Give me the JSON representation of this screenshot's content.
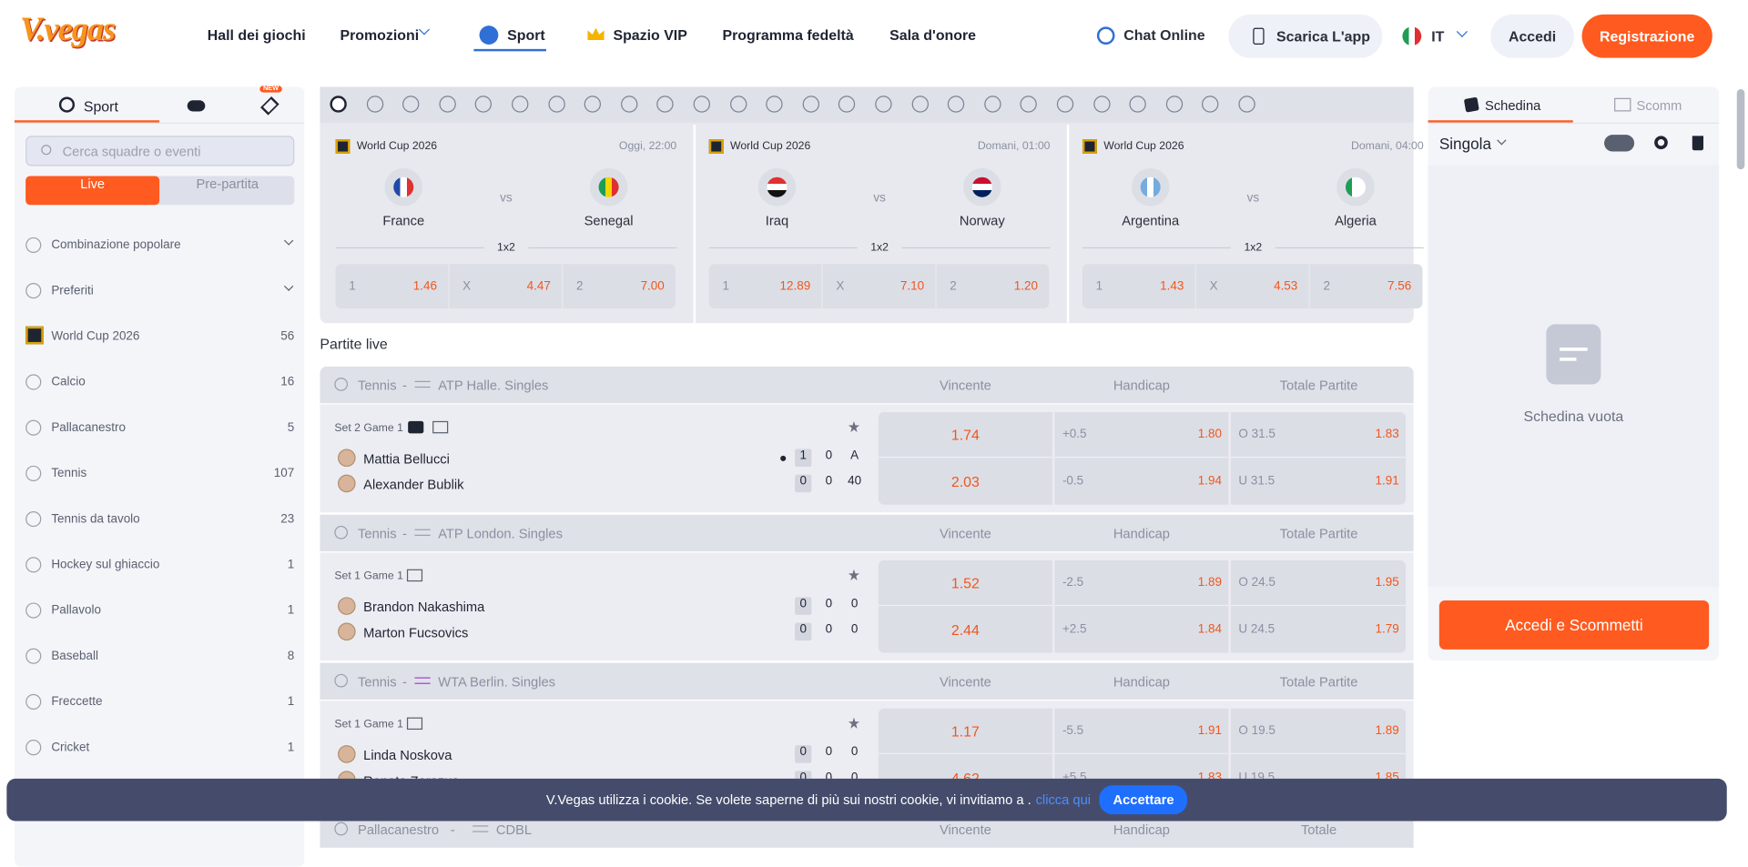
{
  "header": {
    "logo": "V.vegas",
    "nav": [
      "Hall dei giochi",
      "Promozioni",
      "Sport",
      "Spazio VIP",
      "Programma fedeltà",
      "Sala d'onore"
    ],
    "chat": "Chat Online",
    "app": "Scarica L'app",
    "lang": "IT",
    "login": "Accedi",
    "register": "Registrazione"
  },
  "sidebar": {
    "tab": "Sport",
    "badge": "NEW",
    "search": "Cerca squadre o eventi",
    "toggle": [
      "Live",
      "Pre-partita"
    ],
    "items": [
      {
        "label": "Combinazione popolare"
      },
      {
        "label": "Preferiti"
      },
      {
        "label": "World Cup 2026",
        "count": "56"
      },
      {
        "label": "Calcio",
        "count": "16"
      },
      {
        "label": "Pallacanestro",
        "count": "5"
      },
      {
        "label": "Tennis",
        "count": "107"
      },
      {
        "label": "Tennis da tavolo",
        "count": "23"
      },
      {
        "label": "Hockey sul ghiaccio",
        "count": "1"
      },
      {
        "label": "Pallavolo",
        "count": "1"
      },
      {
        "label": "Baseball",
        "count": "8"
      },
      {
        "label": "Freccette",
        "count": "1"
      },
      {
        "label": "Cricket",
        "count": "1"
      }
    ]
  },
  "featured": {
    "vs": "vs",
    "market": "1x2",
    "cards": [
      {
        "league": "World Cup 2026",
        "time": "Oggi, 22:00",
        "home": "France",
        "away": "Senegal",
        "odds": [
          {
            "label": "1",
            "value": "1.46"
          },
          {
            "label": "X",
            "value": "4.47"
          },
          {
            "label": "2",
            "value": "7.00"
          }
        ]
      },
      {
        "league": "World Cup 2026",
        "time": "Domani, 01:00",
        "home": "Iraq",
        "away": "Norway",
        "odds": [
          {
            "label": "1",
            "value": "12.89"
          },
          {
            "label": "X",
            "value": "7.10"
          },
          {
            "label": "2",
            "value": "1.20"
          }
        ]
      },
      {
        "league": "World Cup 2026",
        "time": "Domani, 04:00",
        "home": "Argentina",
        "away": "Algeria",
        "odds": [
          {
            "label": "1",
            "value": "1.43"
          },
          {
            "label": "X",
            "value": "4.53"
          },
          {
            "label": "2",
            "value": "7.56"
          }
        ]
      }
    ]
  },
  "live": {
    "title": "Partite live",
    "separator": "-",
    "groups": [
      {
        "sport": "Tennis",
        "league": "ATP Halle. Singles",
        "headers": [
          "Vincente",
          "Handicap",
          "Totale Partite"
        ],
        "status": "Set 2 Game 1",
        "players": [
          {
            "name": "Mattia Bellucci",
            "serve": true,
            "score": [
              "1",
              "0",
              "A"
            ]
          },
          {
            "name": "Alexander Bublik",
            "score": [
              "0",
              "0",
              "40"
            ]
          }
        ],
        "winner": [
          "1.74",
          "2.03"
        ],
        "handicap": [
          {
            "line": "+0.5",
            "odd": "1.80"
          },
          {
            "line": "-0.5",
            "odd": "1.94"
          }
        ],
        "total": [
          {
            "line": "O 31.5",
            "odd": "1.83"
          },
          {
            "line": "U 31.5",
            "odd": "1.91"
          }
        ]
      },
      {
        "sport": "Tennis",
        "league": "ATP London. Singles",
        "headers": [
          "Vincente",
          "Handicap",
          "Totale Partite"
        ],
        "status": "Set 1 Game 1",
        "players": [
          {
            "name": "Brandon Nakashima",
            "score": [
              "0",
              "0",
              "0"
            ]
          },
          {
            "name": "Marton Fucsovics",
            "score": [
              "0",
              "0",
              "0"
            ]
          }
        ],
        "winner": [
          "1.52",
          "2.44"
        ],
        "handicap": [
          {
            "line": "-2.5",
            "odd": "1.89"
          },
          {
            "line": "+2.5",
            "odd": "1.84"
          }
        ],
        "total": [
          {
            "line": "O 24.5",
            "odd": "1.95"
          },
          {
            "line": "U 24.5",
            "odd": "1.79"
          }
        ]
      },
      {
        "sport": "Tennis",
        "league": "WTA Berlin. Singles",
        "headers": [
          "Vincente",
          "Handicap",
          "Totale Partite"
        ],
        "status": "Set 1 Game 1",
        "players": [
          {
            "name": "Linda Noskova",
            "score": [
              "0",
              "0",
              "0"
            ]
          },
          {
            "name": "Renata Zarazua",
            "score": [
              "0",
              "0",
              "0"
            ]
          }
        ],
        "winner": [
          "1.17",
          "4.62"
        ],
        "handicap": [
          {
            "line": "-5.5",
            "odd": "1.91"
          },
          {
            "line": "+5.5",
            "odd": "1.83"
          }
        ],
        "total": [
          {
            "line": "O 19.5",
            "odd": "1.89"
          },
          {
            "line": "U 19.5",
            "odd": "1.85"
          }
        ]
      },
      {
        "sport": "Pallacanestro",
        "league": "CDBL",
        "headers": [
          "Vincente",
          "Handicap",
          "Totale"
        ]
      }
    ]
  },
  "betslip": {
    "tabs": [
      "Schedina",
      "Scomm"
    ],
    "mode": "Singola",
    "empty": "Schedina vuota",
    "button": "Accedi e Scommetti"
  },
  "cookie": {
    "text": "V.Vegas utilizza i cookie. Se volete saperne di più sui nostri cookie, vi invitiamo a .",
    "link": "clicca qui",
    "button": "Accettare"
  }
}
